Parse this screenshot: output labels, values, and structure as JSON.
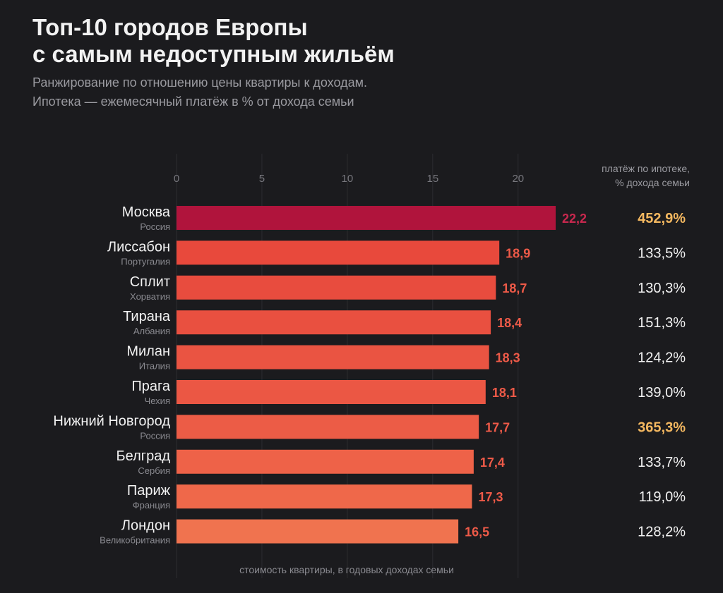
{
  "header": {
    "title_line1": "Топ-10 городов Европы",
    "title_line2": "с самым недоступным жильём",
    "subtitle_line1": "Ранжирование по отношению цены квартиры к доходам.",
    "subtitle_line2": "Ипотека — ежемесячный платёж в % от дохода семьи"
  },
  "chart_data": {
    "type": "bar",
    "orientation": "horizontal",
    "xlabel": "стоимость квартиры, в годовых доходах семьи",
    "xlim": [
      0,
      22.2
    ],
    "xticks": [
      0,
      5,
      10,
      15,
      20
    ],
    "grid": true,
    "mortgage_header_line1": "платёж по ипотеке,",
    "mortgage_header_line2": "% дохода семьи",
    "categories": [
      "Москва",
      "Лиссабон",
      "Сплит",
      "Тирана",
      "Милан",
      "Прага",
      "Нижний Новгород",
      "Белград",
      "Париж",
      "Лондон"
    ],
    "countries": [
      "Россия",
      "Португалия",
      "Хорватия",
      "Албания",
      "Италия",
      "Чехия",
      "Россия",
      "Сербия",
      "Франция",
      "Великобритания"
    ],
    "values": [
      22.2,
      18.9,
      18.7,
      18.4,
      18.3,
      18.1,
      17.7,
      17.4,
      17.3,
      16.5
    ],
    "value_labels": [
      "22,2",
      "18,9",
      "18,7",
      "18,4",
      "18,3",
      "18,1",
      "17,7",
      "17,4",
      "17,3",
      "16,5"
    ],
    "mortgage_labels": [
      "452,9%",
      "133,5%",
      "130,3%",
      "151,3%",
      "124,2%",
      "139,0%",
      "365,3%",
      "133,7%",
      "119,0%",
      "128,2%"
    ],
    "mortgage_highlight": [
      true,
      false,
      false,
      false,
      false,
      false,
      true,
      false,
      false,
      false
    ],
    "bar_colors": [
      "#b0143c",
      "#e8493c",
      "#e84c3e",
      "#e95040",
      "#ea5442",
      "#eb5744",
      "#ec5c46",
      "#ee6248",
      "#ef684a",
      "#f0734f"
    ],
    "value_label_colors": [
      "#c8284e",
      "#ee5a48",
      "#ee5a48",
      "#ee5a48",
      "#ee5a48",
      "#ee5a48",
      "#ee5a48",
      "#ee5a48",
      "#ee5a48",
      "#ee5a48"
    ],
    "highlight_color": "#f4b860",
    "grid_color": "#2c2c30"
  }
}
